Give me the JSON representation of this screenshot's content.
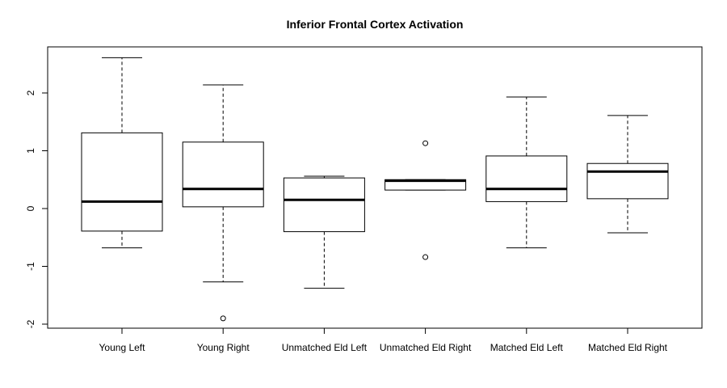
{
  "chart_data": {
    "type": "box",
    "title": "Inferior Frontal Cortex Activation",
    "xlabel": "",
    "ylabel": "",
    "ylim": [
      -2.1,
      2.8
    ],
    "yticks": [
      -2,
      -1,
      0,
      1,
      2
    ],
    "legend": "none",
    "grid": false,
    "categories": [
      "Young Left",
      "Young Right",
      "Unmatched Eld Left",
      "Unmatched Eld Right",
      "Matched Eld Left",
      "Matched Eld Right"
    ],
    "boxes": [
      {
        "whisker_low": -0.68,
        "q1": -0.39,
        "median": 0.12,
        "q3": 1.31,
        "whisker_high": 2.61,
        "outliers": []
      },
      {
        "whisker_low": -1.27,
        "q1": 0.03,
        "median": 0.34,
        "q3": 1.15,
        "whisker_high": 2.14,
        "outliers": [
          -1.9
        ]
      },
      {
        "whisker_low": -1.38,
        "q1": -0.4,
        "median": 0.15,
        "q3": 0.53,
        "whisker_high": 0.56,
        "outliers": []
      },
      {
        "whisker_low": 0.32,
        "q1": 0.32,
        "median": 0.48,
        "q3": 0.5,
        "whisker_high": 0.5,
        "outliers": [
          1.13,
          -0.84
        ]
      },
      {
        "whisker_low": -0.68,
        "q1": 0.12,
        "median": 0.34,
        "q3": 0.91,
        "whisker_high": 1.93,
        "outliers": []
      },
      {
        "whisker_low": -0.42,
        "q1": 0.17,
        "median": 0.64,
        "q3": 0.78,
        "whisker_high": 1.61,
        "outliers": []
      }
    ]
  }
}
